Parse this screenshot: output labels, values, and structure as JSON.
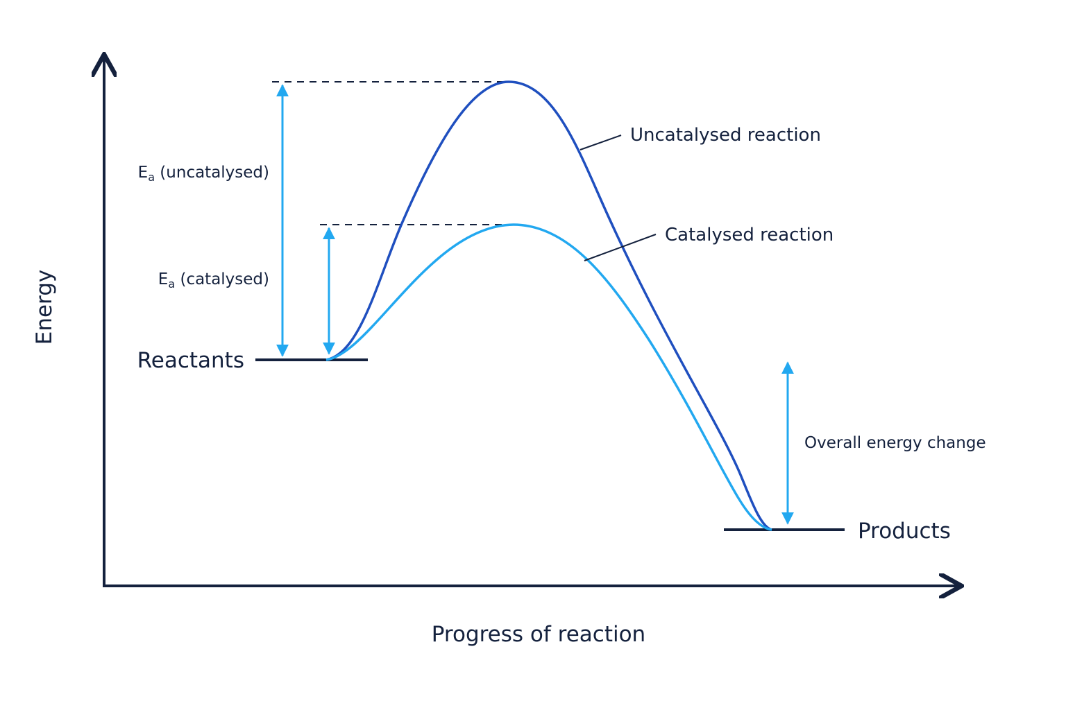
{
  "diagram": {
    "axis_labels": {
      "y": "Energy",
      "x": "Progress of reaction"
    },
    "levels": {
      "reactants": "Reactants",
      "products": "Products"
    },
    "curves": {
      "uncatalysed": "Uncatalysed reaction",
      "catalysed": "Catalysed reaction"
    },
    "arrows": {
      "ea_uncatalysed_symbol": "E",
      "ea_uncatalysed_sub": "a",
      "ea_uncatalysed_text": " (uncatalysed)",
      "ea_catalysed_symbol": "E",
      "ea_catalysed_sub": "a",
      "ea_catalysed_text": " (catalysed)",
      "overall": "Overall energy change"
    },
    "colors": {
      "axis": "#14213d",
      "uncatalysed": "#1f4fbf",
      "catalysed": "#22a8f0",
      "arrow": "#22a8f0"
    }
  }
}
